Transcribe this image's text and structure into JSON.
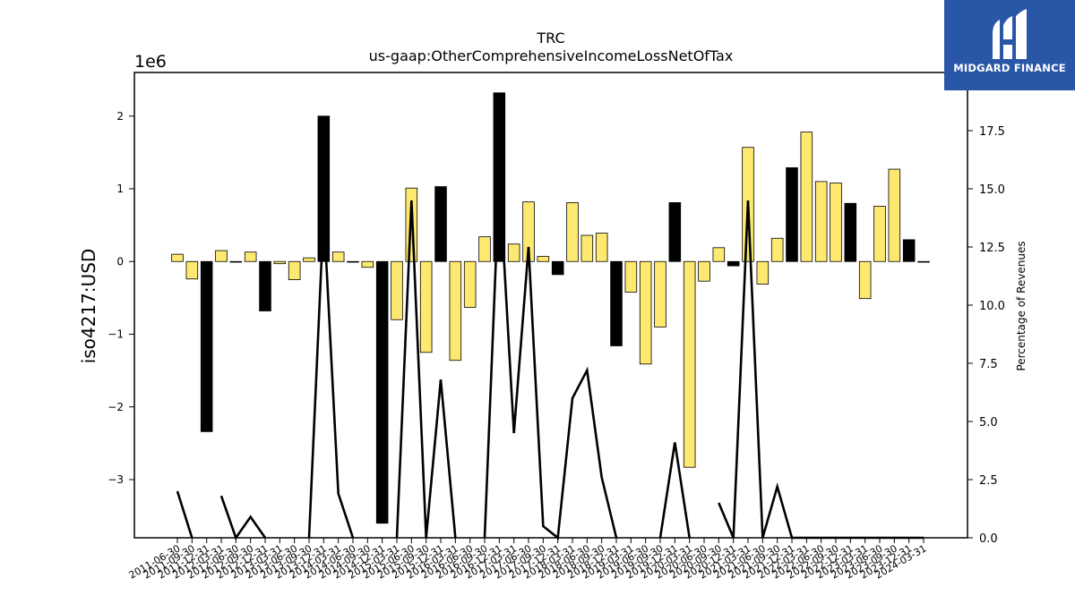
{
  "chart_data": {
    "type": "bar",
    "title": "TRC",
    "subtitle": "us-gaap:OtherComprehensiveIncomeLossNetOfTax",
    "ylabel": "iso4217:USD",
    "y_multiplier": "1e6",
    "ylim": [
      -3.8,
      2.6
    ],
    "yticks": [
      -3,
      -2,
      -1,
      0,
      1,
      2
    ],
    "y2label": "Percentage of Revenues",
    "y2lim": [
      0,
      20
    ],
    "y2ticks": [
      "0.0",
      "2.5",
      "5.0",
      "7.5",
      "10.0",
      "12.5",
      "15.0",
      "17.5"
    ],
    "categories": [
      "2011-06-30",
      "2011-09-30",
      "2011-12-31",
      "2012-03-31",
      "2012-06-30",
      "2012-09-30",
      "2012-12-31",
      "2013-03-31",
      "2013-06-30",
      "2013-09-30",
      "2013-12-31",
      "2014-03-31",
      "2014-06-30",
      "2014-09-30",
      "2014-12-31",
      "2015-03-31",
      "2015-06-30",
      "2015-09-30",
      "2015-12-31",
      "2016-03-31",
      "2016-06-30",
      "2016-09-30",
      "2016-12-31",
      "2017-03-31",
      "2017-06-30",
      "2017-09-30",
      "2017-12-31",
      "2018-03-31",
      "2018-06-30",
      "2018-09-30",
      "2018-12-31",
      "2019-03-31",
      "2019-06-30",
      "2019-09-30",
      "2019-12-31",
      "2020-03-31",
      "2020-06-30",
      "2020-09-30",
      "2020-12-31",
      "2021-03-31",
      "2021-06-30",
      "2021-09-30",
      "2021-12-31",
      "2022-03-31",
      "2022-06-30",
      "2022-09-30",
      "2022-12-31",
      "2023-03-31",
      "2023-06-30",
      "2023-09-30",
      "2023-12-31",
      "2024-03-31"
    ],
    "series": [
      {
        "kind": "bar",
        "values": [
          0.1,
          -0.24,
          -2.34,
          0.15,
          0.0,
          0.13,
          -0.68,
          -0.03,
          -0.25,
          0.05,
          2.0,
          0.13,
          0.0,
          -0.08,
          -3.6,
          -0.8,
          1.01,
          -1.25,
          1.03,
          -1.36,
          -0.63,
          0.34,
          2.32,
          0.24,
          0.82,
          0.07,
          -0.18,
          0.81,
          0.36,
          0.39,
          -1.16,
          -0.42,
          -1.41,
          -0.9,
          0.81,
          -2.83,
          -0.27,
          0.19,
          -0.06,
          1.57,
          -0.31,
          0.32,
          1.29,
          1.78,
          1.1,
          1.08,
          0.8,
          -0.51,
          0.76,
          1.27,
          0.3,
          0.0
        ],
        "colors": [
          "#fde96f",
          "#fde96f",
          "#000000",
          "#fde96f",
          "#fde96f",
          "#fde96f",
          "#000000",
          "#fde96f",
          "#fde96f",
          "#fde96f",
          "#000000",
          "#fde96f",
          "#fde96f",
          "#fde96f",
          "#000000",
          "#fde96f",
          "#fde96f",
          "#fde96f",
          "#000000",
          "#fde96f",
          "#fde96f",
          "#fde96f",
          "#000000",
          "#fde96f",
          "#fde96f",
          "#fde96f",
          "#000000",
          "#fde96f",
          "#fde96f",
          "#fde96f",
          "#000000",
          "#fde96f",
          "#fde96f",
          "#fde96f",
          "#000000",
          "#fde96f",
          "#fde96f",
          "#fde96f",
          "#000000",
          "#fde96f",
          "#fde96f",
          "#fde96f",
          "#000000",
          "#fde96f",
          "#fde96f",
          "#fde96f",
          "#000000",
          "#fde96f",
          "#fde96f",
          "#fde96f",
          "#000000",
          "#fde96f"
        ]
      },
      {
        "kind": "line",
        "axis": "right",
        "color": "#000000",
        "values": [
          2.0,
          0.0,
          null,
          1.8,
          0.0,
          0.9,
          0.0,
          null,
          null,
          0.0,
          14.0,
          1.9,
          0.0,
          null,
          null,
          0.0,
          14.5,
          0.0,
          6.8,
          0.0,
          null,
          0.0,
          15.5,
          4.5,
          12.5,
          0.5,
          0.0,
          6.0,
          7.2,
          2.6,
          0.0,
          null,
          null,
          0.0,
          4.1,
          0.0,
          null,
          1.5,
          0.0,
          14.5,
          0.0,
          2.2,
          0.0,
          0.0,
          0.0,
          0.0,
          0.0,
          0.0,
          0.0,
          0.0,
          0.0,
          0.0
        ]
      }
    ],
    "grid": false,
    "legend": "none"
  },
  "brand": {
    "name": "MIDGARD FINANCE",
    "background": "#2a56a8",
    "icon": "midgard-logo-icon"
  }
}
